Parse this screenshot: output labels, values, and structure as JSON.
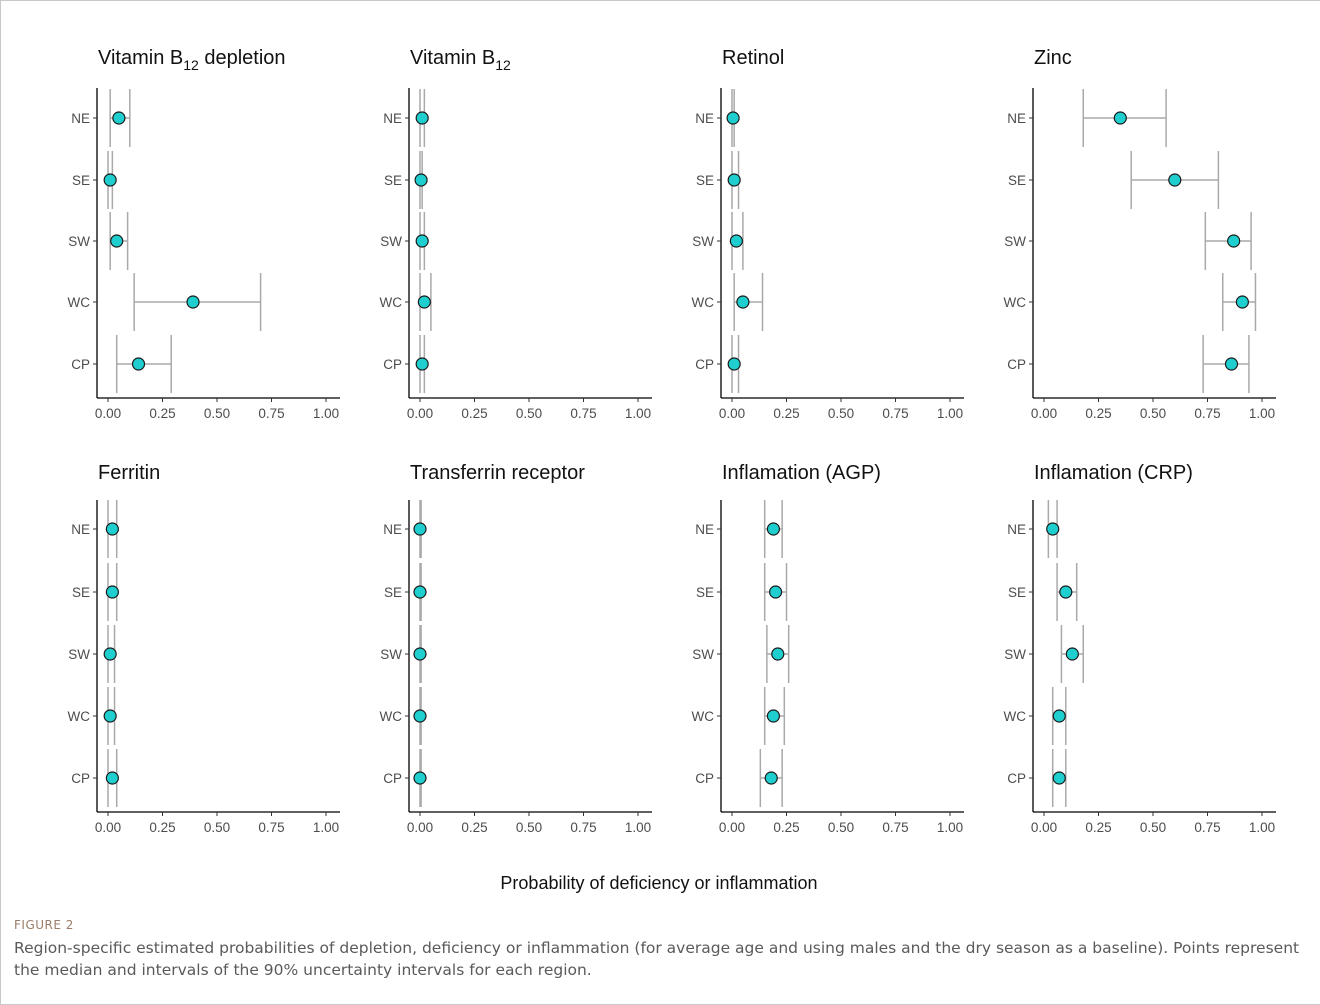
{
  "chart_data": {
    "type": "forest",
    "xlabel": "Probability of deficiency or inflammation",
    "xlim": [
      0,
      1
    ],
    "xticks": [
      "0.00",
      "0.25",
      "0.50",
      "0.75",
      "1.00"
    ],
    "categories": [
      "NE",
      "SE",
      "SW",
      "WC",
      "CP"
    ],
    "grid": false,
    "panels": [
      {
        "title": "Vitamin B",
        "title_sub": "12",
        "title_suffix": " depletion",
        "points": [
          {
            "region": "NE",
            "median": 0.05,
            "low": 0.01,
            "high": 0.1
          },
          {
            "region": "SE",
            "median": 0.01,
            "low": 0.0,
            "high": 0.02
          },
          {
            "region": "SW",
            "median": 0.04,
            "low": 0.01,
            "high": 0.09
          },
          {
            "region": "WC",
            "median": 0.39,
            "low": 0.12,
            "high": 0.7
          },
          {
            "region": "CP",
            "median": 0.14,
            "low": 0.04,
            "high": 0.29
          }
        ]
      },
      {
        "title": "Vitamin B",
        "title_sub": "12",
        "title_suffix": "",
        "points": [
          {
            "region": "NE",
            "median": 0.01,
            "low": 0.0,
            "high": 0.02
          },
          {
            "region": "SE",
            "median": 0.005,
            "low": 0.0,
            "high": 0.01
          },
          {
            "region": "SW",
            "median": 0.01,
            "low": 0.0,
            "high": 0.02
          },
          {
            "region": "WC",
            "median": 0.02,
            "low": 0.0,
            "high": 0.05
          },
          {
            "region": "CP",
            "median": 0.01,
            "low": 0.0,
            "high": 0.02
          }
        ]
      },
      {
        "title": "Retinol",
        "title_sub": "",
        "title_suffix": "",
        "points": [
          {
            "region": "NE",
            "median": 0.005,
            "low": 0.0,
            "high": 0.01
          },
          {
            "region": "SE",
            "median": 0.01,
            "low": 0.0,
            "high": 0.03
          },
          {
            "region": "SW",
            "median": 0.02,
            "low": 0.0,
            "high": 0.05
          },
          {
            "region": "WC",
            "median": 0.05,
            "low": 0.01,
            "high": 0.14
          },
          {
            "region": "CP",
            "median": 0.01,
            "low": 0.0,
            "high": 0.03
          }
        ]
      },
      {
        "title": "Zinc",
        "title_sub": "",
        "title_suffix": "",
        "points": [
          {
            "region": "NE",
            "median": 0.35,
            "low": 0.18,
            "high": 0.56
          },
          {
            "region": "SE",
            "median": 0.6,
            "low": 0.4,
            "high": 0.8
          },
          {
            "region": "SW",
            "median": 0.87,
            "low": 0.74,
            "high": 0.95
          },
          {
            "region": "WC",
            "median": 0.91,
            "low": 0.82,
            "high": 0.97
          },
          {
            "region": "CP",
            "median": 0.86,
            "low": 0.73,
            "high": 0.94
          }
        ]
      },
      {
        "title": "Ferritin",
        "title_sub": "",
        "title_suffix": "",
        "points": [
          {
            "region": "NE",
            "median": 0.02,
            "low": 0.0,
            "high": 0.04
          },
          {
            "region": "SE",
            "median": 0.02,
            "low": 0.0,
            "high": 0.04
          },
          {
            "region": "SW",
            "median": 0.01,
            "low": 0.0,
            "high": 0.03
          },
          {
            "region": "WC",
            "median": 0.01,
            "low": 0.0,
            "high": 0.03
          },
          {
            "region": "CP",
            "median": 0.02,
            "low": 0.0,
            "high": 0.04
          }
        ]
      },
      {
        "title": "Transferrin receptor",
        "title_sub": "",
        "title_suffix": "",
        "points": [
          {
            "region": "NE",
            "median": 0.0,
            "low": 0.0,
            "high": 0.005
          },
          {
            "region": "SE",
            "median": 0.0,
            "low": 0.0,
            "high": 0.005
          },
          {
            "region": "SW",
            "median": 0.0,
            "low": 0.0,
            "high": 0.005
          },
          {
            "region": "WC",
            "median": 0.0,
            "low": 0.0,
            "high": 0.005
          },
          {
            "region": "CP",
            "median": 0.0,
            "low": 0.0,
            "high": 0.005
          }
        ]
      },
      {
        "title": "Inflamation (AGP)",
        "title_sub": "",
        "title_suffix": "",
        "points": [
          {
            "region": "NE",
            "median": 0.19,
            "low": 0.15,
            "high": 0.23
          },
          {
            "region": "SE",
            "median": 0.2,
            "low": 0.15,
            "high": 0.25
          },
          {
            "region": "SW",
            "median": 0.21,
            "low": 0.16,
            "high": 0.26
          },
          {
            "region": "WC",
            "median": 0.19,
            "low": 0.15,
            "high": 0.24
          },
          {
            "region": "CP",
            "median": 0.18,
            "low": 0.13,
            "high": 0.23
          }
        ]
      },
      {
        "title": "Inflamation (CRP)",
        "title_sub": "",
        "title_suffix": "",
        "points": [
          {
            "region": "NE",
            "median": 0.04,
            "low": 0.02,
            "high": 0.06
          },
          {
            "region": "SE",
            "median": 0.1,
            "low": 0.06,
            "high": 0.15
          },
          {
            "region": "SW",
            "median": 0.13,
            "low": 0.08,
            "high": 0.18
          },
          {
            "region": "WC",
            "median": 0.07,
            "low": 0.04,
            "high": 0.1
          },
          {
            "region": "CP",
            "median": 0.07,
            "low": 0.04,
            "high": 0.1
          }
        ]
      }
    ]
  },
  "caption": {
    "label": "FIGURE 2",
    "text": "Region-specific estimated probabilities of depletion, deficiency or inflammation (for average age and using males and the dry season as a baseline). Points represent the median and intervals of the 90% uncertainty intervals for each region."
  },
  "colors": {
    "point_fill": "#1fcfcf",
    "point_stroke": "#1a1a1a",
    "interval": "#a9a9a9",
    "axis": "#000000",
    "tick_text": "#4d4d4d"
  }
}
